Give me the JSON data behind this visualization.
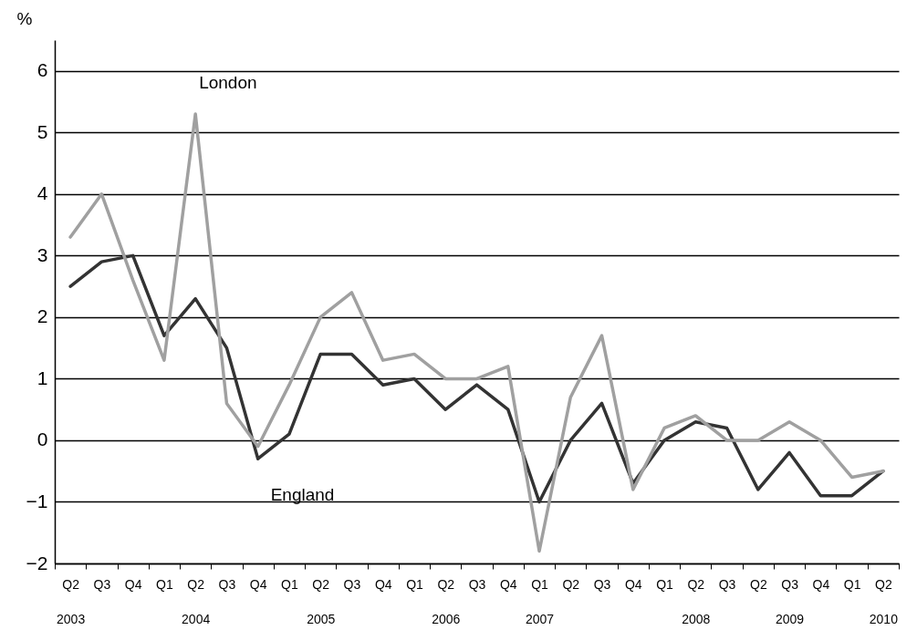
{
  "chart_data": {
    "type": "line",
    "ylabel": "%",
    "categories": [
      "Q2\n2003",
      "Q3",
      "Q4",
      "Q1",
      "Q2\n2004",
      "Q3",
      "Q4",
      "Q1",
      "Q2\n2005",
      "Q3",
      "Q4",
      "Q1",
      "Q2\n2006",
      "Q3",
      "Q4",
      "Q1\n2007",
      "Q2",
      "Q3",
      "Q4",
      "Q1",
      "Q2\n2008",
      "Q3",
      "Q2",
      "Q3\n2009",
      "Q4",
      "Q1",
      "Q2\n2010"
    ],
    "series": [
      {
        "name": "England",
        "color": "#333333",
        "values": [
          2.5,
          2.9,
          3.0,
          1.7,
          2.3,
          1.5,
          -0.3,
          0.1,
          1.4,
          1.4,
          0.9,
          1.0,
          0.5,
          0.9,
          0.5,
          -1.0,
          0.0,
          0.6,
          -0.7,
          0.0,
          0.3,
          0.2,
          -0.8,
          -0.2,
          -0.9,
          -0.9,
          -0.5
        ]
      },
      {
        "name": "London",
        "color": "#a0a0a0",
        "values": [
          3.3,
          4.0,
          2.6,
          1.3,
          5.3,
          0.6,
          -0.1,
          0.9,
          2.0,
          2.4,
          1.3,
          1.4,
          1.0,
          1.0,
          1.2,
          -1.8,
          0.7,
          1.7,
          -0.8,
          0.2,
          0.4,
          0.0,
          0.0,
          0.3,
          0.0,
          -0.6,
          -0.5
        ]
      }
    ],
    "ylim": [
      -2,
      6.5
    ],
    "yticks": [
      -2,
      -1,
      0,
      1,
      2,
      3,
      4,
      5,
      6
    ],
    "grid": "y",
    "legend": false,
    "marker": "none",
    "line_style": "solid"
  }
}
